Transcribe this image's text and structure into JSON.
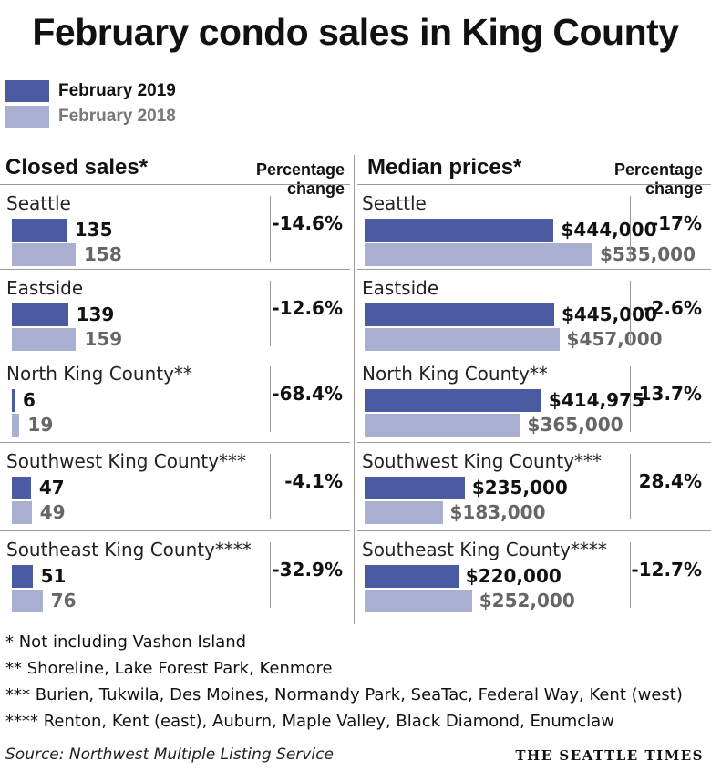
{
  "title": "February condo sales in King County",
  "colors": {
    "current": "#4a5ba1",
    "previous": "#a8afd1"
  },
  "legend": [
    {
      "label": "February 2019",
      "color": "#4a5ba1"
    },
    {
      "label": "February 2018",
      "color": "#a8afd1"
    }
  ],
  "left_header": "Closed sales*",
  "right_header": "Median prices*",
  "pct_header_line1": "Percentage",
  "pct_header_line2": "change",
  "chart_data": [
    {
      "type": "bar",
      "title": "Closed sales*",
      "categories": [
        "Seattle",
        "Eastside",
        "North King County**",
        "Southwest King County***",
        "Southeast King County****"
      ],
      "series": [
        {
          "name": "February 2019",
          "values": [
            135,
            139,
            6,
            47,
            51
          ],
          "labels": [
            "135",
            "139",
            "6",
            "47",
            "51"
          ]
        },
        {
          "name": "February 2018",
          "values": [
            158,
            159,
            19,
            49,
            76
          ],
          "labels": [
            "158",
            "159",
            "19",
            "49",
            "76"
          ]
        }
      ],
      "percentage_change": [
        "-14.6%",
        "-12.6%",
        "-68.4%",
        "-4.1%",
        "-32.9%"
      ],
      "orientation": "horizontal",
      "xlim": [
        0,
        180
      ]
    },
    {
      "type": "bar",
      "title": "Median prices*",
      "categories": [
        "Seattle",
        "Eastside",
        "North King County**",
        "Southwest King County***",
        "Southeast King County****"
      ],
      "series": [
        {
          "name": "February 2019",
          "values": [
            444000,
            445000,
            414975,
            235000,
            220000
          ],
          "labels": [
            "$444,000",
            "$445,000",
            "$414,975",
            "$235,000",
            "$220,000"
          ]
        },
        {
          "name": "February 2018",
          "values": [
            535000,
            457000,
            365000,
            183000,
            252000
          ],
          "labels": [
            "$535,000",
            "$457,000",
            "$365,000",
            "$183,000",
            "$252,000"
          ]
        }
      ],
      "percentage_change": [
        "-17%",
        "-2.6%",
        "13.7%",
        "28.4%",
        "-12.7%"
      ],
      "orientation": "horizontal",
      "xlim": [
        0,
        560000
      ]
    }
  ],
  "footnotes": [
    "* Not including Vashon Island",
    "** Shoreline, Lake Forest Park, Kenmore",
    "*** Burien, Tukwila, Des Moines, Normandy Park, SeaTac, Federal Way, Kent (west)",
    "**** Renton, Kent (east), Auburn, Maple Valley, Black Diamond, Enumclaw"
  ],
  "source": "Source: Northwest Multiple Listing Service",
  "brand": "THE SEATTLE TIMES"
}
